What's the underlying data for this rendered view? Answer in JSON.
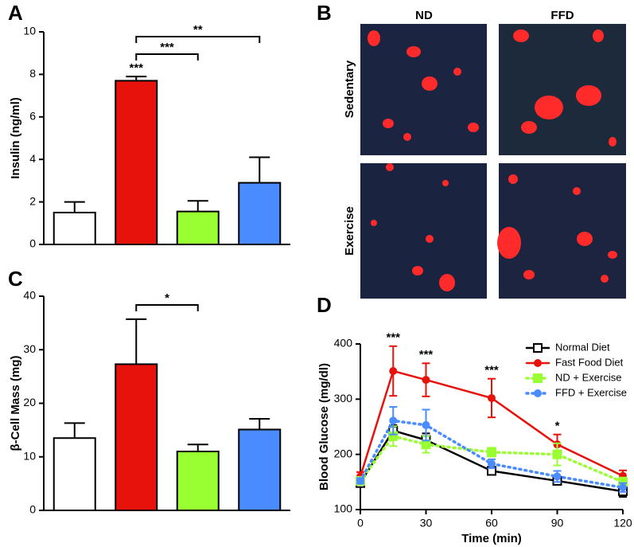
{
  "chart_data": [
    {
      "panel_label": "A",
      "type": "bar",
      "ylabel": "Insulin (ng/ml)",
      "categories": [
        null,
        null,
        null,
        null
      ],
      "values": [
        1.5,
        7.7,
        1.55,
        2.9
      ],
      "errors": [
        0.5,
        0.2,
        0.5,
        1.2
      ],
      "colors": [
        "#ffffff",
        "#e8120c",
        "#99ff33",
        "#4a8cff"
      ],
      "ylim": [
        0,
        10
      ],
      "yticks": [
        0,
        2,
        4,
        6,
        8,
        10
      ],
      "annotations": [
        "***",
        "***",
        "**"
      ]
    },
    {
      "panel_label": "C",
      "type": "bar",
      "ylabel": "β-Cell Mass (mg)",
      "categories": [
        null,
        null,
        null,
        null
      ],
      "values": [
        13.5,
        27.3,
        11,
        15.1
      ],
      "errors": [
        2.8,
        8.4,
        1.3,
        2
      ],
      "colors": [
        "#ffffff",
        "#e8120c",
        "#99ff33",
        "#4a8cff"
      ],
      "ylim": [
        0,
        40
      ],
      "yticks": [
        0,
        10,
        20,
        30,
        40
      ],
      "annotations": [
        "*"
      ]
    },
    {
      "panel_label": "D",
      "type": "line",
      "xlabel": "Time (min)",
      "ylabel": "Blood Glucose (mg/dl)",
      "x": [
        0,
        15,
        30,
        60,
        90,
        120
      ],
      "xlim": [
        0,
        120
      ],
      "xticks": [
        0,
        30,
        60,
        90,
        120
      ],
      "ylim": [
        100,
        400
      ],
      "yticks": [
        100,
        200,
        300,
        400
      ],
      "series": [
        {
          "name": "Normal Diet",
          "color": "#000000",
          "dash": "solid",
          "marker": "open-square",
          "values": [
            148,
            243,
            226,
            170,
            152,
            133
          ],
          "errors": [
            5,
            10,
            12,
            5,
            5,
            10
          ]
        },
        {
          "name": "Fast Food Diet",
          "color": "#e8120c",
          "dash": "solid",
          "marker": "circle",
          "values": [
            160,
            351,
            335,
            302,
            218,
            161
          ],
          "errors": [
            8,
            45,
            30,
            35,
            18,
            10
          ]
        },
        {
          "name": "ND + Exercise",
          "color": "#99ff33",
          "dash": "dotted",
          "marker": "square",
          "values": [
            152,
            233,
            218,
            204,
            200,
            150
          ],
          "errors": [
            5,
            18,
            15,
            8,
            20,
            8
          ]
        },
        {
          "name": "FFD + Exercise",
          "color": "#4a8cff",
          "dash": "dotted",
          "marker": "circle",
          "values": [
            152,
            261,
            253,
            183,
            160,
            140
          ],
          "errors": [
            5,
            25,
            28,
            8,
            10,
            8
          ]
        }
      ],
      "legend": "upper right",
      "annotations": [
        "***",
        "***",
        "***",
        "*"
      ]
    }
  ],
  "image_panel": {
    "panel_label": "B",
    "columns": [
      "ND",
      "FFD"
    ],
    "rows": [
      "Sedentary",
      "Exercise"
    ]
  }
}
